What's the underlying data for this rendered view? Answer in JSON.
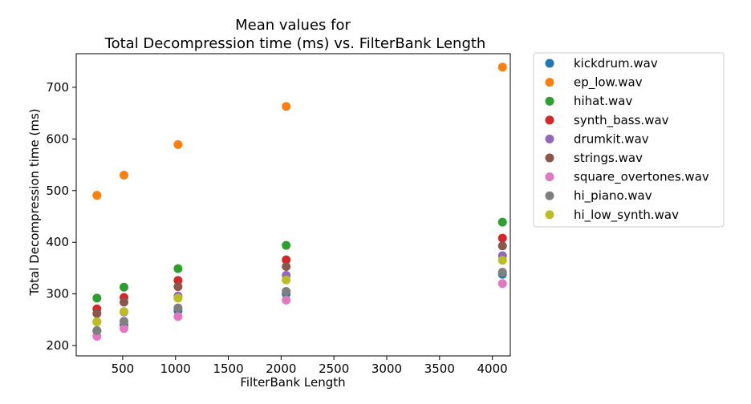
{
  "chart_data": {
    "type": "scatter",
    "title_line1": "Mean values for",
    "title_line2": "Total Decompression time (ms) vs. FilterBank Length",
    "xlabel": "FilterBank Length",
    "ylabel": "Total Decompression time (ms)",
    "xlim": [
      60,
      4170
    ],
    "ylim": [
      180,
      765
    ],
    "x_ticks": [
      500,
      1000,
      1500,
      2000,
      2500,
      3000,
      3500,
      4000
    ],
    "y_ticks": [
      200,
      300,
      400,
      500,
      600,
      700
    ],
    "x": [
      256,
      512,
      1024,
      2048,
      4096
    ],
    "legend_position": "outside-right",
    "series": [
      {
        "name": "kickdrum.wav",
        "color": "#1f77b4",
        "values": [
          228,
          240,
          267,
          300,
          338
        ]
      },
      {
        "name": "ep_low.wav",
        "color": "#ff7f0e",
        "values": [
          491,
          530,
          589,
          663,
          739
        ]
      },
      {
        "name": "hihat.wav",
        "color": "#2ca02c",
        "values": [
          292,
          313,
          349,
          394,
          439
        ]
      },
      {
        "name": "synth_bass.wav",
        "color": "#d62728",
        "values": [
          271,
          293,
          326,
          366,
          408
        ]
      },
      {
        "name": "drumkit.wav",
        "color": "#9467bd",
        "values": [
          246,
          265,
          296,
          336,
          374
        ]
      },
      {
        "name": "strings.wav",
        "color": "#8c564b",
        "values": [
          262,
          284,
          314,
          353,
          393
        ]
      },
      {
        "name": "square_overtones.wav",
        "color": "#e377c2",
        "values": [
          218,
          233,
          256,
          288,
          320
        ]
      },
      {
        "name": "hi_piano.wav",
        "color": "#7f7f7f",
        "values": [
          229,
          247,
          273,
          305,
          342
        ]
      },
      {
        "name": "hi_low_synth.wav",
        "color": "#bcbd22",
        "values": [
          246,
          266,
          292,
          327,
          365
        ]
      }
    ]
  }
}
